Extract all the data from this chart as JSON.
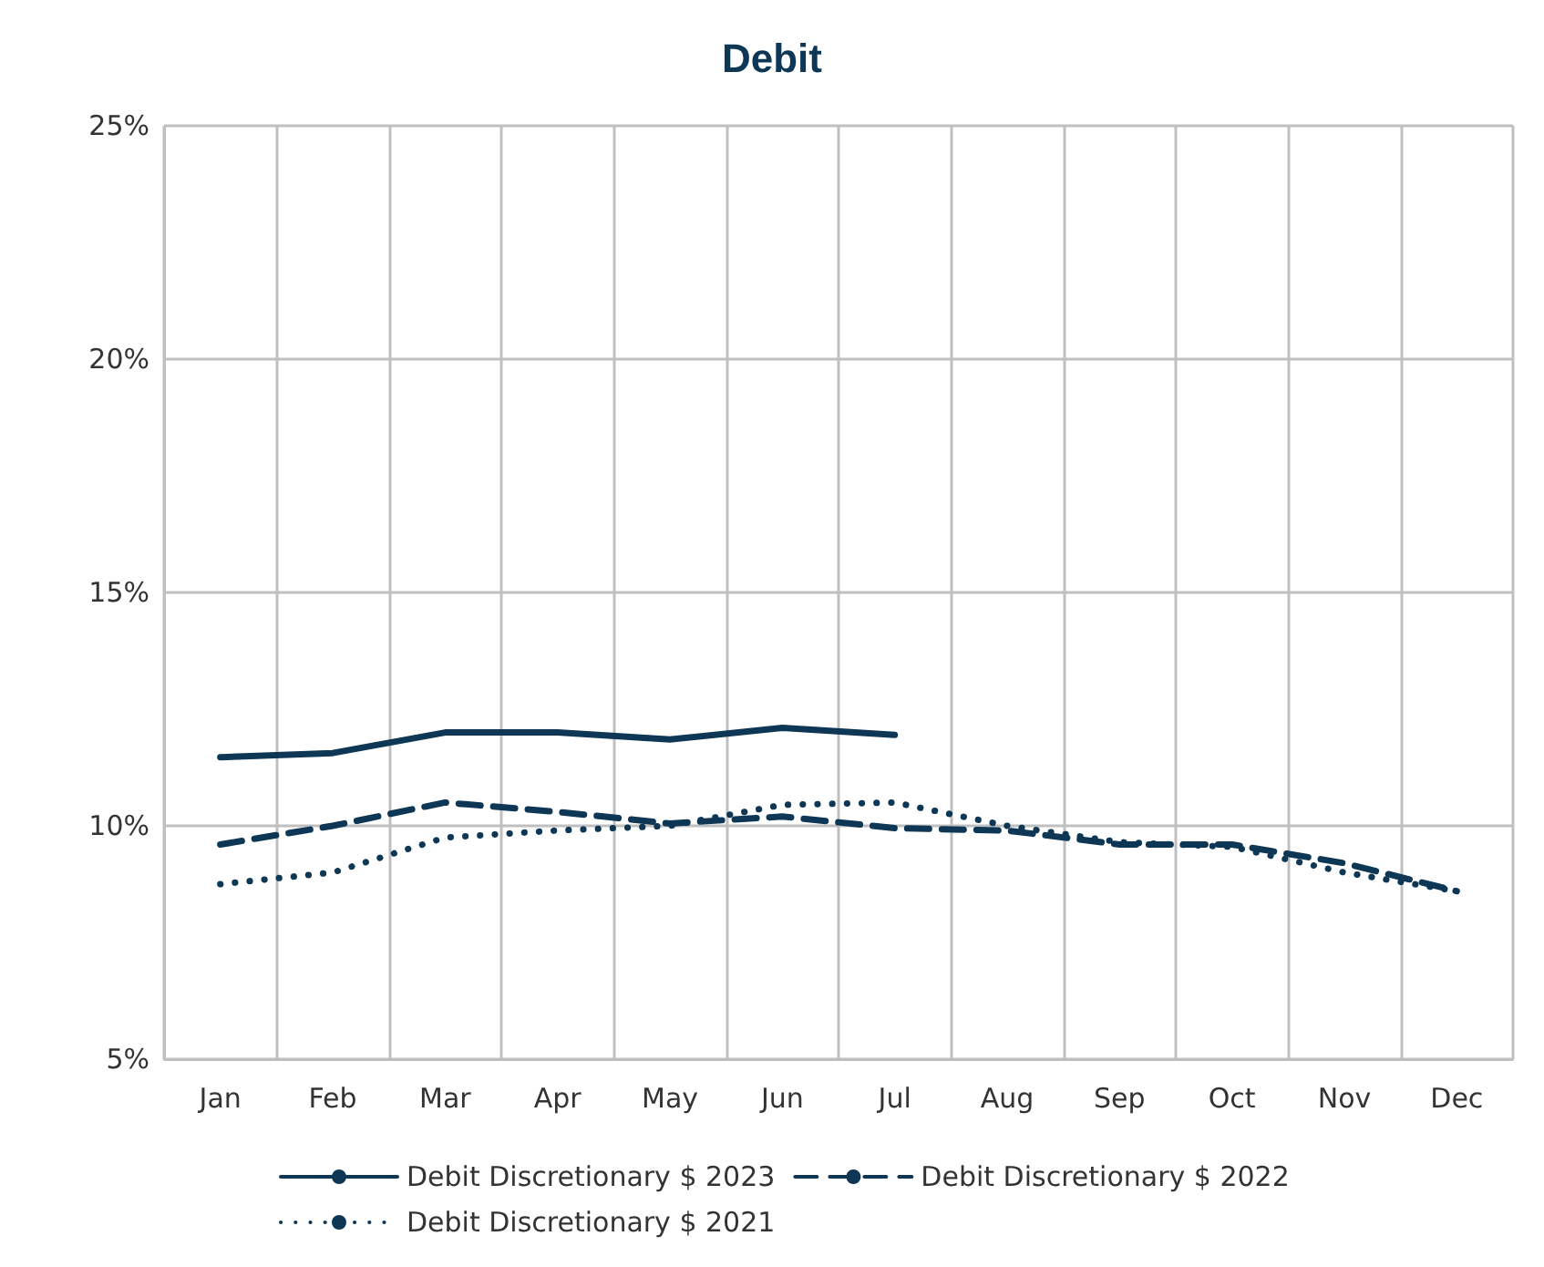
{
  "chart_data": {
    "type": "line",
    "title": "Debit",
    "categories": [
      "Jan",
      "Feb",
      "Mar",
      "Apr",
      "May",
      "Jun",
      "Jul",
      "Aug",
      "Sep",
      "Oct",
      "Nov",
      "Dec"
    ],
    "series": [
      {
        "name": "Debit Discretionary $ 2023",
        "color": "#0d3754",
        "line_style": "solid",
        "values": [
          11.47,
          11.56,
          12.0,
          12.0,
          11.85,
          12.1,
          11.95,
          null,
          null,
          null,
          null,
          null
        ]
      },
      {
        "name": "Debit Discretionary $ 2022",
        "color": "#0d3754",
        "line_style": "dashed",
        "values": [
          9.6,
          10.0,
          10.5,
          10.3,
          10.05,
          10.2,
          9.95,
          9.9,
          9.6,
          9.6,
          9.2,
          8.6
        ]
      },
      {
        "name": "Debit Discretionary $ 2021",
        "color": "#0d3754",
        "line_style": "dotted",
        "values": [
          8.75,
          9.0,
          9.75,
          9.9,
          10.0,
          10.45,
          10.5,
          10.0,
          9.65,
          9.55,
          9.0,
          8.6
        ]
      }
    ],
    "ylim": [
      5,
      25
    ],
    "yticks": [
      {
        "value": 5,
        "label": "5%"
      },
      {
        "value": 10,
        "label": "10%"
      },
      {
        "value": 15,
        "label": "15%"
      },
      {
        "value": 20,
        "label": "20%"
      },
      {
        "value": 25,
        "label": "25%"
      }
    ],
    "grid": true,
    "legend": "bottom",
    "marker": "none"
  }
}
